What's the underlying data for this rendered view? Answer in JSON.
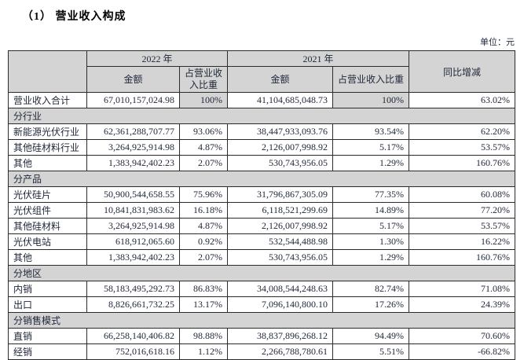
{
  "page": {
    "title": "（1） 营业收入构成",
    "unit_label": "单位：元"
  },
  "table": {
    "header": {
      "corner": "",
      "year_2022": "2022 年",
      "year_2021": "2021 年",
      "amount_2022": "金额",
      "pct_2022": "占营业收入比重",
      "amount_2021": "金额",
      "pct_2021": "占营业收入比重",
      "yoy": "同比增减"
    },
    "rows": [
      {
        "type": "total",
        "label": "营业收入合计",
        "a22": "67,010,157,024.98",
        "p22": "100%",
        "a21": "41,104,685,048.73",
        "p21": "100%",
        "yoy": "63.02%"
      },
      {
        "type": "section",
        "label": "分行业"
      },
      {
        "type": "data",
        "label": "新能源光伏行业",
        "a22": "62,361,288,707.77",
        "p22": "93.06%",
        "a21": "38,447,933,093.76",
        "p21": "93.54%",
        "yoy": "62.20%"
      },
      {
        "type": "data",
        "label": "其他硅材料行业",
        "a22": "3,264,925,914.98",
        "p22": "4.87%",
        "a21": "2,126,007,998.92",
        "p21": "5.17%",
        "yoy": "53.57%"
      },
      {
        "type": "data",
        "label": "其他",
        "a22": "1,383,942,402.23",
        "p22": "2.07%",
        "a21": "530,743,956.05",
        "p21": "1.29%",
        "yoy": "160.76%"
      },
      {
        "type": "section",
        "label": "分产品"
      },
      {
        "type": "data",
        "label": "光伏硅片",
        "a22": "50,900,544,658.55",
        "p22": "75.96%",
        "a21": "31,796,867,305.09",
        "p21": "77.35%",
        "yoy": "60.08%"
      },
      {
        "type": "data",
        "label": "光伏组件",
        "a22": "10,841,831,983.62",
        "p22": "16.18%",
        "a21": "6,118,521,299.69",
        "p21": "14.89%",
        "yoy": "77.20%"
      },
      {
        "type": "data",
        "label": "其他硅材料",
        "a22": "3,264,925,914.98",
        "p22": "4.87%",
        "a21": "2,126,007,998.92",
        "p21": "5.17%",
        "yoy": "53.57%"
      },
      {
        "type": "data",
        "label": "光伏电站",
        "a22": "618,912,065.60",
        "p22": "0.92%",
        "a21": "532,544,488.98",
        "p21": "1.30%",
        "yoy": "16.22%"
      },
      {
        "type": "data",
        "label": "其他",
        "a22": "1,383,942,402.23",
        "p22": "2.07%",
        "a21": "530,743,956.05",
        "p21": "1.29%",
        "yoy": "160.76%"
      },
      {
        "type": "section",
        "label": "分地区"
      },
      {
        "type": "data",
        "label": "内销",
        "a22": "58,183,495,292.73",
        "p22": "86.83%",
        "a21": "34,008,544,248.63",
        "p21": "82.74%",
        "yoy": "71.08%"
      },
      {
        "type": "data",
        "label": "出口",
        "a22": "8,826,661,732.25",
        "p22": "13.17%",
        "a21": "7,096,140,800.10",
        "p21": "17.26%",
        "yoy": "24.39%"
      },
      {
        "type": "section",
        "label": "分销售模式"
      },
      {
        "type": "data",
        "label": "直销",
        "a22": "66,258,140,406.82",
        "p22": "98.88%",
        "a21": "38,837,896,268.12",
        "p21": "94.49%",
        "yoy": "70.60%"
      },
      {
        "type": "data",
        "label": "经销",
        "a22": "752,016,618.16",
        "p22": "1.12%",
        "a21": "2,266,788,780.61",
        "p21": "5.51%",
        "yoy": "-66.82%"
      }
    ]
  }
}
